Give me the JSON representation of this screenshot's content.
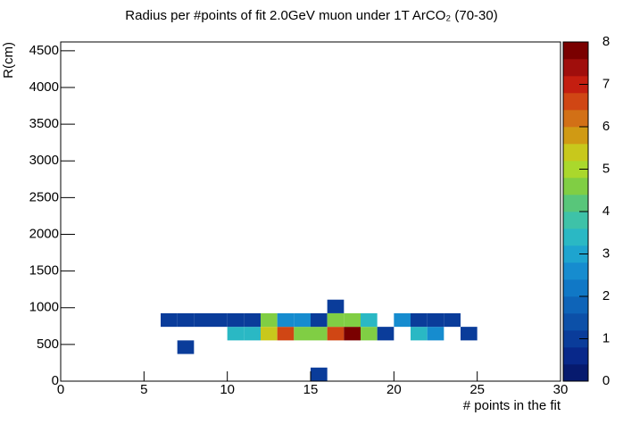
{
  "chart_data": {
    "type": "heatmap",
    "title": "Radius per #points of fit 2.0GeV muon under 1T ArCO₂ (70-30)",
    "x_label": "# points in the fit",
    "y_label": "R(cm)",
    "xlim": [
      0,
      30
    ],
    "ylim": [
      0,
      4620
    ],
    "xticks": [
      0,
      5,
      10,
      15,
      20,
      25,
      30
    ],
    "yticks": [
      0,
      500,
      1000,
      1500,
      2000,
      2500,
      3000,
      3500,
      4000,
      4500
    ],
    "zlim": [
      0,
      8
    ],
    "zticks": [
      0,
      1,
      2,
      3,
      4,
      5,
      6,
      7,
      8
    ],
    "bin_width": [
      1,
      185
    ],
    "palette": [
      "#061a6e",
      "#08288a",
      "#0a3c9a",
      "#0c50a8",
      "#0e64b8",
      "#1078c6",
      "#168ccf",
      "#1ea4cf",
      "#2ab8c4",
      "#3ec2a8",
      "#58c67a",
      "#80ce44",
      "#aad82c",
      "#c8c81c",
      "#d09a14",
      "#d27016",
      "#d04614",
      "#c41e10",
      "#a00e0c",
      "#7a0000"
    ],
    "x": [
      15,
      7,
      10,
      11,
      12,
      13,
      14,
      15,
      16,
      17,
      18,
      19,
      21,
      22,
      24,
      6,
      7,
      8,
      9,
      10,
      11,
      12,
      13,
      14,
      15,
      16,
      17,
      18,
      20,
      21,
      22,
      23,
      16
    ],
    "y": [
      0,
      370,
      555,
      555,
      555,
      555,
      555,
      555,
      555,
      555,
      555,
      555,
      555,
      555,
      555,
      740,
      740,
      740,
      740,
      740,
      740,
      740,
      740,
      740,
      740,
      740,
      740,
      740,
      740,
      740,
      740,
      740,
      925
    ],
    "values": [
      1,
      1,
      3.4,
      3.4,
      5.3,
      6.5,
      4.5,
      4.5,
      6.5,
      8,
      4.5,
      1,
      3.4,
      2.6,
      1,
      1,
      1,
      1,
      1,
      1,
      1,
      4.5,
      2.6,
      2.6,
      1,
      4.5,
      4.5,
      3.4,
      2.5,
      1,
      1,
      1,
      1
    ]
  }
}
